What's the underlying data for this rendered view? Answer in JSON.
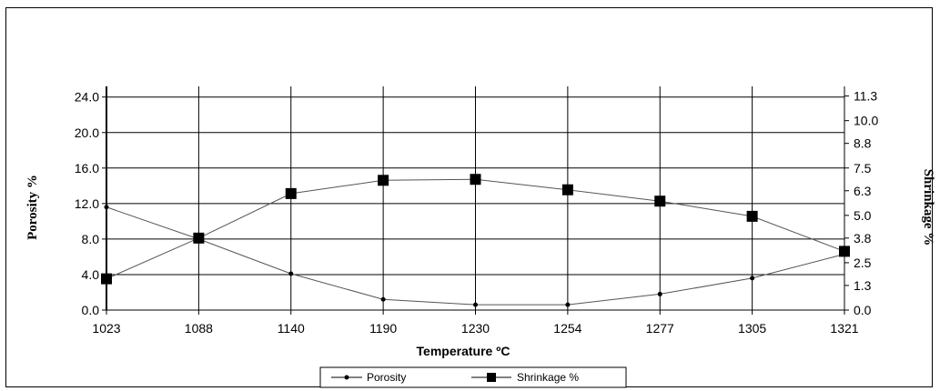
{
  "chart_data": {
    "type": "line",
    "title": "",
    "xlabel": "Temperature ºC",
    "ylabel_left": "Porosity %",
    "ylabel_right": "Shrinkage %",
    "categories": [
      "1023",
      "1088",
      "1140",
      "1190",
      "1230",
      "1254",
      "1277",
      "1305",
      "1321"
    ],
    "left_ticks": [
      "0.0",
      "4.0",
      "8.0",
      "12.0",
      "16.0",
      "20.0",
      "24.0"
    ],
    "right_ticks": [
      "0.0",
      "1.3",
      "2.5",
      "3.8",
      "5.0",
      "6.3",
      "7.5",
      "8.8",
      "10.0",
      "11.3"
    ],
    "ylim_left": [
      0,
      24
    ],
    "ylim_right": [
      0,
      11.3
    ],
    "grid": true,
    "legend_position": "bottom",
    "series": [
      {
        "name": "Porosity",
        "axis": "left",
        "marker": "small-dot",
        "values": [
          11.6,
          8.0,
          4.1,
          1.2,
          0.6,
          0.6,
          1.8,
          3.6,
          6.3
        ]
      },
      {
        "name": "Shrinkage %",
        "axis": "right",
        "marker": "square",
        "values": [
          1.65,
          3.8,
          6.15,
          6.85,
          6.9,
          6.35,
          5.75,
          4.95,
          3.1
        ]
      }
    ]
  }
}
